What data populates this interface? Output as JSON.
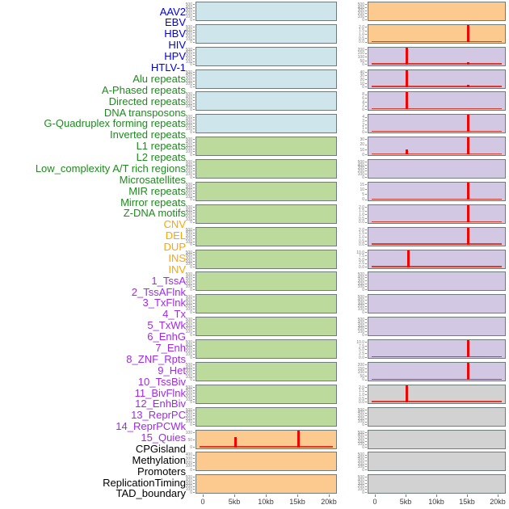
{
  "figure": {
    "description": "Genomic feature track small-multiples figure, 44 tracks in 2 plot columns",
    "x_axis_ticks": [
      "0",
      "5kb",
      "10kb",
      "15kb",
      "20kb"
    ]
  },
  "colors": {
    "label_virus": "#0000EE",
    "label_repeat": "#1E8B1E",
    "label_sv": "#FFA500",
    "label_chromatin": "#A228E8",
    "label_other": "#000000",
    "panel_virus": "#CEE5EC",
    "panel_repeat": "#BCDA9B",
    "panel_sv": "#FCCA8E",
    "panel_chromatin": "#D3C8E3",
    "panel_other": "#D2D2D2",
    "series_red": "#F40400",
    "panel_border": "#6E7B7B",
    "ytick_text": "#808080",
    "xtick_text": "#3A3A3A"
  },
  "chart_data": {
    "type": "line",
    "layout": "small-multiples, 2 columns x 22 rows, column-major label order",
    "x_unit": "kb",
    "x_range_kb": [
      0,
      20
    ],
    "x_ticks": [
      "0",
      "5kb",
      "10kb",
      "15kb",
      "20kb"
    ],
    "legend_position": "none",
    "grid": false,
    "columns": [
      {
        "panels": [
          {
            "label": "AAV2",
            "group": "virus",
            "yticks": [
              "0",
              "100",
              "200",
              "300",
              "400",
              "500"
            ],
            "baseline": false,
            "spikes": []
          },
          {
            "label": "EBV",
            "group": "virus",
            "yticks": [
              "0",
              "100",
              "200",
              "300",
              "400",
              "500"
            ],
            "baseline": false,
            "spikes": []
          },
          {
            "label": "HBV",
            "group": "virus",
            "yticks": [
              "0",
              "100",
              "200",
              "300",
              "400",
              "500"
            ],
            "baseline": false,
            "spikes": []
          },
          {
            "label": "HIV",
            "group": "virus",
            "yticks": [
              "0",
              "100",
              "200",
              "300",
              "400",
              "500"
            ],
            "baseline": false,
            "spikes": []
          },
          {
            "label": "HPV",
            "group": "virus",
            "yticks": [
              "0",
              "100",
              "200",
              "300",
              "400",
              "500"
            ],
            "baseline": false,
            "spikes": []
          },
          {
            "label": "HTLV-1",
            "group": "virus",
            "yticks": [
              "0",
              "100",
              "200",
              "300",
              "400",
              "500"
            ],
            "baseline": false,
            "spikes": []
          },
          {
            "label": "Alu repeats",
            "group": "repeat",
            "yticks": [
              "0",
              "100",
              "200",
              "300",
              "400",
              "500"
            ],
            "baseline": false,
            "spikes": []
          },
          {
            "label": "A-Phased repeats",
            "group": "repeat",
            "yticks": [
              "0",
              "100",
              "200",
              "300",
              "400",
              "500"
            ],
            "baseline": false,
            "spikes": []
          },
          {
            "label": "Directed repeats",
            "group": "repeat",
            "yticks": [
              "0",
              "100",
              "200",
              "300",
              "400",
              "500"
            ],
            "baseline": false,
            "spikes": []
          },
          {
            "label": "DNA transposons",
            "group": "repeat",
            "yticks": [
              "0",
              "100",
              "200",
              "300",
              "400",
              "500"
            ],
            "baseline": false,
            "spikes": []
          },
          {
            "label": "G-Quadruplex forming repeats",
            "group": "repeat",
            "yticks": [
              "0",
              "100",
              "200",
              "300",
              "400",
              "500"
            ],
            "baseline": false,
            "spikes": []
          },
          {
            "label": "Inverted repeats",
            "group": "repeat",
            "yticks": [
              "0",
              "100",
              "200",
              "300",
              "400",
              "500"
            ],
            "baseline": false,
            "spikes": []
          },
          {
            "label": "L1 repeats",
            "group": "repeat",
            "yticks": [
              "0",
              "100",
              "200",
              "300",
              "400",
              "500"
            ],
            "baseline": false,
            "spikes": []
          },
          {
            "label": "L2 repeats",
            "group": "repeat",
            "yticks": [
              "0",
              "100",
              "200",
              "300",
              "400",
              "500"
            ],
            "baseline": false,
            "spikes": []
          },
          {
            "label": "Low_complexity A/T rich regions",
            "group": "repeat",
            "yticks": [
              "0",
              "100",
              "200",
              "300",
              "400",
              "500"
            ],
            "baseline": false,
            "spikes": []
          },
          {
            "label": "Microsatellites",
            "group": "repeat",
            "yticks": [
              "0",
              "100",
              "200",
              "300",
              "400",
              "500"
            ],
            "baseline": false,
            "spikes": []
          },
          {
            "label": "MIR repeats",
            "group": "repeat",
            "yticks": [
              "0",
              "100",
              "200",
              "300",
              "400",
              "500"
            ],
            "baseline": false,
            "spikes": []
          },
          {
            "label": "Mirror repeats",
            "group": "repeat",
            "yticks": [
              "0",
              "100",
              "200",
              "300",
              "400",
              "500"
            ],
            "baseline": false,
            "spikes": []
          },
          {
            "label": "Z-DNA motifs",
            "group": "repeat",
            "yticks": [
              "0",
              "100",
              "200",
              "300",
              "400",
              "500"
            ],
            "baseline": false,
            "spikes": []
          },
          {
            "label": "CNV",
            "group": "sv",
            "yticks": [
              "0",
              "50",
              "100"
            ],
            "baseline": true,
            "spikes": [
              {
                "x_kb": 5.0,
                "frac": 0.62,
                "value": 62
              },
              {
                "x_kb": 15.1,
                "frac": 1.0,
                "value": 100
              }
            ]
          },
          {
            "label": "DEL",
            "group": "sv",
            "yticks": [
              "0",
              "100",
              "200",
              "300",
              "400"
            ],
            "baseline": false,
            "spikes": []
          },
          {
            "label": "DUP",
            "group": "sv",
            "yticks": [
              "0",
              "100",
              "200",
              "300",
              "400",
              "500"
            ],
            "baseline": false,
            "spikes": []
          }
        ]
      },
      {
        "panels": [
          {
            "label": "INS",
            "group": "sv",
            "yticks": [
              "0",
              "100",
              "200",
              "300",
              "400",
              "500"
            ],
            "baseline": false,
            "spikes": []
          },
          {
            "label": "INV",
            "group": "sv",
            "yticks": [
              "0.0",
              "0.5",
              "1.0",
              "1.5",
              "2.0"
            ],
            "baseline": true,
            "spikes": [
              {
                "x_kb": 15.1,
                "frac": 1.0,
                "value": 2.0
              }
            ]
          },
          {
            "label": "1_TssA",
            "group": "chromatin",
            "yticks": [
              "0",
              "50",
              "100",
              "150",
              "200"
            ],
            "baseline": true,
            "spikes": [
              {
                "x_kb": 5.1,
                "frac": 1.0,
                "value": 200
              },
              {
                "x_kb": 15.1,
                "frac": 0.12,
                "value": 24
              }
            ]
          },
          {
            "label": "2_TssAFlnk",
            "group": "chromatin",
            "yticks": [
              "0",
              "10",
              "20",
              "30",
              "40"
            ],
            "baseline": true,
            "spikes": [
              {
                "x_kb": 5.1,
                "frac": 1.0,
                "value": 40
              },
              {
                "x_kb": 15.1,
                "frac": 0.12,
                "value": 5
              }
            ]
          },
          {
            "label": "3_TxFlnk",
            "group": "chromatin",
            "yticks": [
              "0",
              "2",
              "4",
              "6",
              "8"
            ],
            "baseline": true,
            "spikes": [
              {
                "x_kb": 5.1,
                "frac": 1.0,
                "value": 8
              }
            ]
          },
          {
            "label": "4_Tx",
            "group": "chromatin",
            "yticks": [
              "0",
              "1",
              "2",
              "3",
              "4"
            ],
            "baseline": true,
            "spikes": [
              {
                "x_kb": 15.1,
                "frac": 1.0,
                "value": 4
              }
            ]
          },
          {
            "label": "5_TxWk",
            "group": "chromatin",
            "yticks": [
              "0",
              "10",
              "20",
              "30"
            ],
            "baseline": true,
            "spikes": [
              {
                "x_kb": 5.1,
                "frac": 0.32,
                "value": 10
              },
              {
                "x_kb": 15.1,
                "frac": 1.0,
                "value": 30
              }
            ]
          },
          {
            "label": "6_EnhG",
            "group": "chromatin",
            "yticks": [
              "0",
              "100",
              "200",
              "300",
              "400",
              "500"
            ],
            "baseline": false,
            "spikes": []
          },
          {
            "label": "7_Enh",
            "group": "chromatin",
            "yticks": [
              "0",
              "5",
              "10",
              "15"
            ],
            "baseline": true,
            "spikes": [
              {
                "x_kb": 15.1,
                "frac": 1.0,
                "value": 15
              }
            ]
          },
          {
            "label": "8_ZNF_Rpts",
            "group": "chromatin",
            "yticks": [
              "0.0",
              "0.5",
              "1.0",
              "1.5",
              "2.0"
            ],
            "baseline": true,
            "spikes": [
              {
                "x_kb": 15.1,
                "frac": 1.0,
                "value": 2.0
              }
            ]
          },
          {
            "label": "9_Het",
            "group": "chromatin",
            "yticks": [
              "0.0",
              "0.5",
              "1.0",
              "1.5",
              "2.0"
            ],
            "baseline": true,
            "spikes": [
              {
                "x_kb": 15.1,
                "frac": 1.0,
                "value": 2.0
              }
            ]
          },
          {
            "label": "10_TssBiv",
            "group": "chromatin",
            "yticks": [
              "0.0",
              "2.5",
              "5.0",
              "7.5",
              "10.0"
            ],
            "baseline": true,
            "spikes": [
              {
                "x_kb": 5.3,
                "frac": 1.0,
                "value": 10
              }
            ]
          },
          {
            "label": "11_BivFlnk",
            "group": "chromatin",
            "yticks": [
              "0",
              "100",
              "200",
              "300",
              "400",
              "500"
            ],
            "baseline": false,
            "spikes": []
          },
          {
            "label": "12_EnhBiv",
            "group": "chromatin",
            "yticks": [
              "0",
              "100",
              "200",
              "300",
              "400",
              "500"
            ],
            "baseline": false,
            "spikes": []
          },
          {
            "label": "13_ReprPC",
            "group": "chromatin",
            "yticks": [
              "0",
              "100",
              "200",
              "300",
              "400",
              "500"
            ],
            "baseline": false,
            "spikes": []
          },
          {
            "label": "14_ReprPCWk",
            "group": "chromatin",
            "yticks": [
              "0.0",
              "2.5",
              "5.0",
              "7.5",
              "10.0"
            ],
            "baseline": true,
            "spikes": [
              {
                "x_kb": 15.1,
                "frac": 1.0,
                "value": 10
              }
            ]
          },
          {
            "label": "15_Quies",
            "group": "chromatin",
            "yticks": [
              "0",
              "50",
              "100",
              "150",
              "200"
            ],
            "baseline": true,
            "spikes": [
              {
                "x_kb": 15.1,
                "frac": 1.0,
                "value": 200
              }
            ]
          },
          {
            "label": "CPGisland",
            "group": "other",
            "yticks": [
              "0.0",
              "0.5",
              "1.0",
              "1.5",
              "2.0"
            ],
            "baseline": true,
            "spikes": [
              {
                "x_kb": 5.1,
                "frac": 1.0,
                "value": 2.0
              }
            ]
          },
          {
            "label": "Methylation",
            "group": "other",
            "yticks": [
              "0",
              "100",
              "200",
              "300",
              "400",
              "500"
            ],
            "baseline": false,
            "spikes": []
          },
          {
            "label": "Promoters",
            "group": "other",
            "yticks": [
              "0",
              "100",
              "200",
              "300",
              "400",
              "500"
            ],
            "baseline": false,
            "spikes": []
          },
          {
            "label": "ReplicationTiming",
            "group": "other",
            "yticks": [
              "0",
              "100",
              "200",
              "300",
              "400",
              "500"
            ],
            "baseline": false,
            "spikes": []
          },
          {
            "label": "TAD_boundary",
            "group": "other",
            "yticks": [
              "0",
              "100",
              "200",
              "300",
              "400",
              "500"
            ],
            "baseline": false,
            "spikes": []
          }
        ]
      }
    ]
  }
}
